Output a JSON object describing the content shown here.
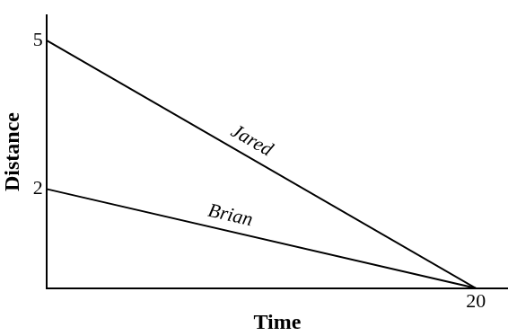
{
  "chart_data": {
    "type": "line",
    "x_label": "Time",
    "y_label": "Distance",
    "x": [
      0,
      20
    ],
    "series": [
      {
        "name": "Jared",
        "color": "#000000",
        "values": [
          5,
          0
        ]
      },
      {
        "name": "Brian",
        "color": "#000000",
        "values": [
          2,
          0
        ]
      }
    ],
    "xlim": [
      0,
      21.5
    ],
    "xticks": [
      20
    ],
    "ylim": [
      0,
      5.5
    ],
    "yticks": [
      2,
      5
    ],
    "grid": false
  }
}
